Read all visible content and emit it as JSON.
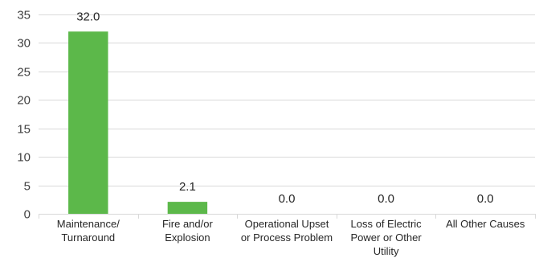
{
  "chart_data": {
    "type": "bar",
    "title": "",
    "xlabel": "",
    "ylabel": "",
    "ylim": [
      0,
      35
    ],
    "yticks": [
      0,
      5,
      10,
      15,
      20,
      25,
      30,
      35
    ],
    "grid": true,
    "legend": "none",
    "bar_color": "#5cb84a",
    "categories": [
      [
        "Maintenance/",
        "Turnaround"
      ],
      [
        "Fire and/or",
        "Explosion"
      ],
      [
        "Operational Upset",
        "or Process Problem"
      ],
      [
        "Loss of Electric",
        "Power or Other",
        "Utility"
      ],
      [
        "All Other Causes"
      ]
    ],
    "values": [
      32.0,
      2.1,
      0.0,
      0.0,
      0.0
    ],
    "data_labels": [
      "32.0",
      "2.1",
      "0.0",
      "0.0",
      "0.0"
    ]
  }
}
